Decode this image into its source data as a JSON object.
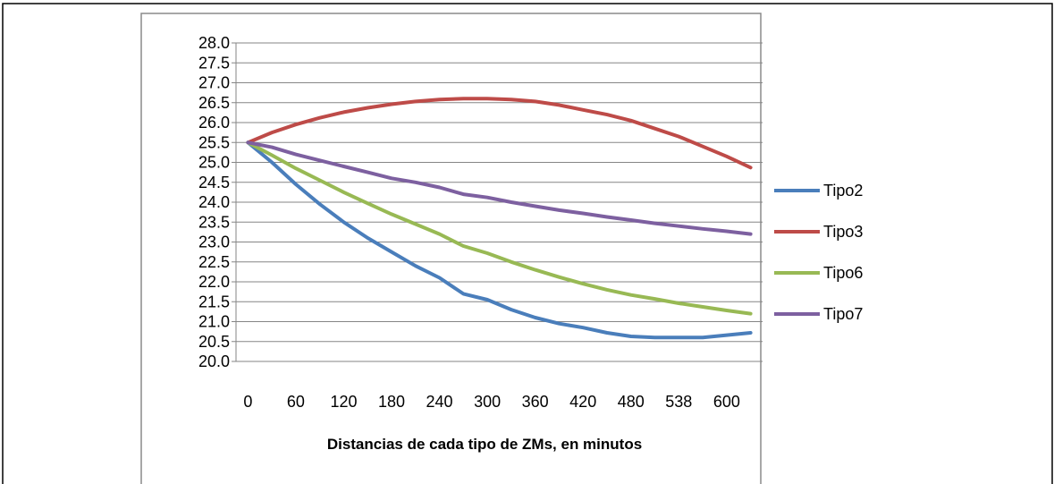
{
  "chart_data": {
    "type": "line",
    "title": "",
    "xlabel": "Distancias de cada tipo de ZMs, en minutos",
    "ylabel": "",
    "x": [
      0,
      30,
      60,
      90,
      120,
      150,
      180,
      210,
      240,
      270,
      300,
      330,
      360,
      390,
      420,
      450,
      480,
      509,
      538,
      567,
      600,
      629
    ],
    "x_tick_labels": [
      "0",
      "60",
      "120",
      "180",
      "240",
      "300",
      "360",
      "420",
      "480",
      "538",
      "600"
    ],
    "ylim": [
      20.0,
      28.0
    ],
    "y_tick_labels": [
      "20.0",
      "20.5",
      "21.0",
      "21.5",
      "22.0",
      "22.5",
      "23.0",
      "23.5",
      "24.0",
      "24.5",
      "25.0",
      "25.5",
      "26.0",
      "26.5",
      "27.0",
      "27.5",
      "28.0"
    ],
    "grid": "horizontal",
    "legend": "right",
    "series": [
      {
        "name": "Tipo2",
        "color": "#4a7ebb",
        "values": [
          25.5,
          25.0,
          24.45,
          23.95,
          23.5,
          23.1,
          22.75,
          22.4,
          22.1,
          21.7,
          21.55,
          21.3,
          21.1,
          20.95,
          20.85,
          20.72,
          20.63,
          20.6,
          20.6,
          20.6,
          20.66,
          20.72
        ]
      },
      {
        "name": "Tipo3",
        "color": "#be4b48",
        "values": [
          25.5,
          25.75,
          25.95,
          26.12,
          26.26,
          26.37,
          26.46,
          26.53,
          26.58,
          26.6,
          26.6,
          26.58,
          26.53,
          26.44,
          26.32,
          26.2,
          26.05,
          25.85,
          25.65,
          25.4,
          25.15,
          24.87
        ]
      },
      {
        "name": "Tipo6",
        "color": "#98b954",
        "values": [
          25.5,
          25.18,
          24.85,
          24.55,
          24.25,
          23.97,
          23.7,
          23.45,
          23.2,
          22.9,
          22.72,
          22.5,
          22.3,
          22.12,
          21.95,
          21.8,
          21.67,
          21.57,
          21.46,
          21.37,
          21.28,
          21.2
        ]
      },
      {
        "name": "Tipo7",
        "color": "#7d60a0",
        "values": [
          25.5,
          25.38,
          25.2,
          25.05,
          24.9,
          24.75,
          24.6,
          24.5,
          24.37,
          24.2,
          24.12,
          24.0,
          23.9,
          23.8,
          23.72,
          23.63,
          23.55,
          23.47,
          23.4,
          23.33,
          23.27,
          23.2
        ]
      }
    ]
  }
}
